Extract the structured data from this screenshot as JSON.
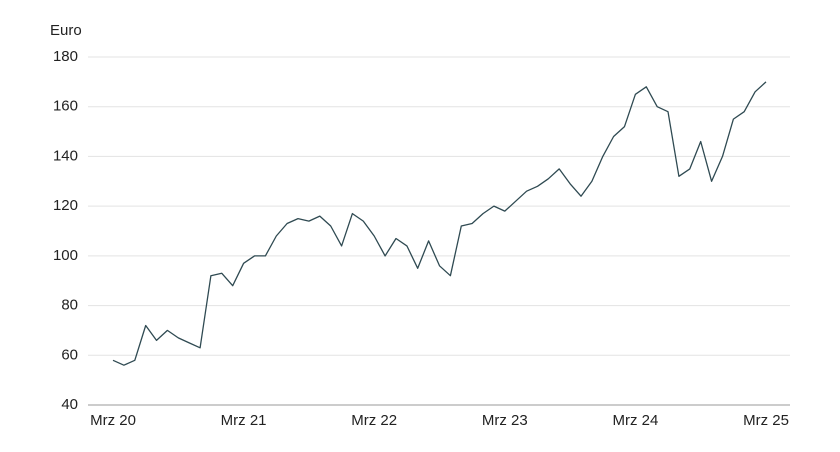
{
  "chart_data": {
    "type": "line",
    "y_label": "Euro",
    "categories": [
      "Mrz 20",
      null,
      null,
      null,
      null,
      null,
      null,
      null,
      null,
      null,
      null,
      null,
      "Mrz 21",
      null,
      null,
      null,
      null,
      null,
      null,
      null,
      null,
      null,
      null,
      null,
      "Mrz 22",
      null,
      null,
      null,
      null,
      null,
      null,
      null,
      null,
      null,
      null,
      null,
      "Mrz 23",
      null,
      null,
      null,
      null,
      null,
      null,
      null,
      null,
      null,
      null,
      null,
      "Mrz 24",
      null,
      null,
      null,
      null,
      null,
      null,
      null,
      null,
      null,
      null,
      null,
      "Mrz 25"
    ],
    "series": [
      {
        "color": "#2f4a52",
        "values": [
          58,
          56,
          58,
          72,
          66,
          70,
          67,
          65,
          63,
          92,
          93,
          88,
          97,
          100,
          100,
          108,
          113,
          115,
          114,
          116,
          112,
          104,
          117,
          114,
          108,
          100,
          107,
          104,
          95,
          106,
          96,
          92,
          112,
          113,
          117,
          120,
          118,
          122,
          126,
          128,
          131,
          135,
          129,
          124,
          130,
          140,
          148,
          152,
          165,
          168,
          160,
          158,
          132,
          135,
          146,
          130,
          140,
          155,
          158,
          166,
          170
        ]
      }
    ],
    "ylim": [
      40,
      180
    ],
    "yticks": [
      40,
      60,
      80,
      100,
      120,
      140,
      160,
      180
    ],
    "grid": true
  }
}
